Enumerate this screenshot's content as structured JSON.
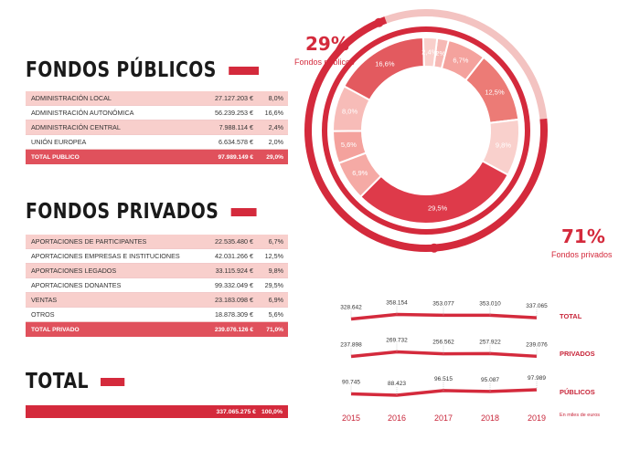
{
  "public_section": {
    "title": "FONDOS PÚBLICOS",
    "rows": [
      {
        "label": "ADMINISTRACIÓN LOCAL",
        "amount": "27.127.203 €",
        "pct": "8,0%"
      },
      {
        "label": "ADMINISTRACIÓN AUTONÓMICA",
        "amount": "56.239.253 €",
        "pct": "16,6%"
      },
      {
        "label": "ADMINISTRACIÓN CENTRAL",
        "amount": "7.988.114 €",
        "pct": "2,4%"
      },
      {
        "label": "UNIÓN EUROPEA",
        "amount": "6.634.578 €",
        "pct": "2,0%"
      }
    ],
    "total": {
      "label": "TOTAL PÚBLICO",
      "amount": "97.989.149 €",
      "pct": "29,0%"
    }
  },
  "private_section": {
    "title": "FONDOS PRIVADOS",
    "rows": [
      {
        "label": "APORTACIONES DE PARTICIPANTES",
        "amount": "22.535.480 €",
        "pct": "6,7%"
      },
      {
        "label": "APORTACIONES EMPRESAS E INSTITUCIONES",
        "amount": "42.031.266 €",
        "pct": "12,5%"
      },
      {
        "label": "APORTACIONES LEGADOS",
        "amount": "33.115.924 €",
        "pct": "9,8%"
      },
      {
        "label": "APORTACIONES DONANTES",
        "amount": "99.332.049 €",
        "pct": "29,5%"
      },
      {
        "label": "VENTAS",
        "amount": "23.183.098 €",
        "pct": "6,9%"
      },
      {
        "label": "OTROS",
        "amount": "18.878.309 €",
        "pct": "5,6%"
      }
    ],
    "total": {
      "label": "TOTAL PRIVADO",
      "amount": "239.076.126 €",
      "pct": "71,0%"
    }
  },
  "total_section": {
    "title": "TOTAL",
    "amount": "337.065.275 €",
    "pct": "100,0%"
  },
  "donut": {
    "public_pct": "29%",
    "public_label": "Fondos públicos",
    "private_pct": "71%",
    "private_label": "Fondos privados"
  },
  "trend": {
    "units_note": "En miles de euros"
  },
  "colors": {
    "accent": "#d42a3c",
    "shade": "#f8cfcc",
    "total_row": "#e0515c"
  },
  "chart_data": [
    {
      "type": "pie",
      "categories": [
        "2%",
        "6,7%",
        "12,5%",
        "9,8%",
        "29,5%",
        "6,9%",
        "5,6%",
        "8,0%",
        "16,6%",
        "2,4%"
      ],
      "values": [
        2.0,
        6.7,
        12.5,
        9.8,
        29.5,
        6.9,
        5.6,
        8.0,
        16.6,
        2.4
      ],
      "slice_colors": [
        "#f6b9b5",
        "#f4a29d",
        "#ec7b76",
        "#f9d0cc",
        "#de3a4a",
        "#f5aaa5",
        "#f4a29d",
        "#f7bcb8",
        "#e35a5f",
        "#f9cfcb"
      ],
      "outer_ring": {
        "values": [
          29,
          71
        ],
        "labels": [
          "29%",
          "71%"
        ]
      }
    },
    {
      "type": "line",
      "x": [
        2015,
        2016,
        2017,
        2018,
        2019
      ],
      "series": [
        {
          "name": "TOTAL",
          "values": [
            328642,
            358154,
            353077,
            353010,
            337065
          ],
          "labels": [
            "328.642",
            "358.154",
            "353.077",
            "353.010",
            "337.065"
          ]
        },
        {
          "name": "PRIVADOS",
          "values": [
            237898,
            269732,
            256562,
            257922,
            239076
          ],
          "labels": [
            "237.898",
            "269.732",
            "256.562",
            "257.922",
            "239.076"
          ]
        },
        {
          "name": "PÚBLICOS",
          "values": [
            90745,
            88423,
            96515,
            95087,
            97989
          ],
          "labels": [
            "90.745",
            "88.423",
            "96.515",
            "95.087",
            "97.989"
          ]
        }
      ],
      "xlabel": "",
      "ylabel": ""
    }
  ]
}
